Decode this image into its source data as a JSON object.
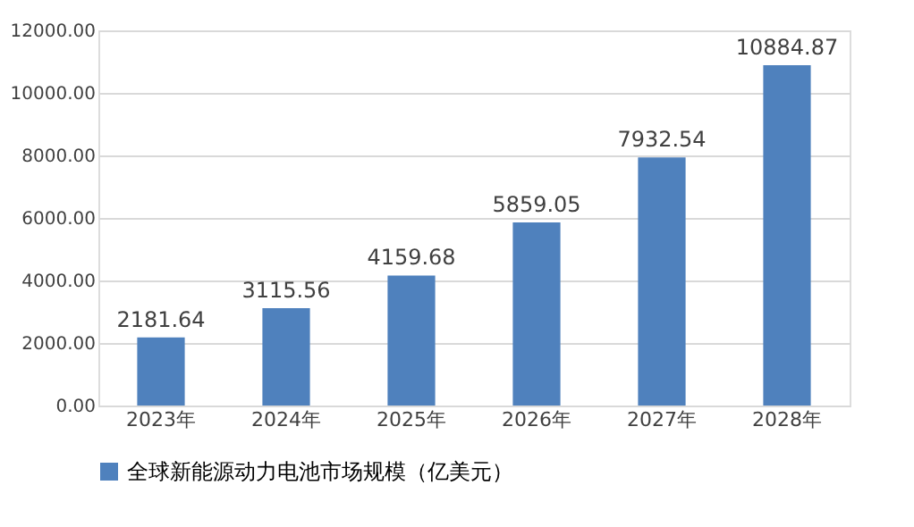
{
  "chart_data": {
    "type": "bar",
    "categories": [
      "2023年",
      "2024年",
      "2025年",
      "2026年",
      "2027年",
      "2028年"
    ],
    "series": [
      {
        "name": "全球新能源动力电池市场规模（亿美元）",
        "color": "#4f81bd",
        "values": [
          2181.64,
          3115.56,
          4159.68,
          5859.05,
          7932.54,
          10884.87
        ]
      }
    ],
    "ylim": [
      0,
      12000
    ],
    "yticks": [
      {
        "value": 0,
        "label": "0.00"
      },
      {
        "value": 2000,
        "label": "2000.00"
      },
      {
        "value": 4000,
        "label": "4000.00"
      },
      {
        "value": 6000,
        "label": "6000.00"
      },
      {
        "value": 8000,
        "label": "8000.00"
      },
      {
        "value": 10000,
        "label": "10000.00"
      },
      {
        "value": 12000,
        "label": "12000.00"
      }
    ],
    "grid": "y",
    "legend": "bottom",
    "data_labels": true
  }
}
